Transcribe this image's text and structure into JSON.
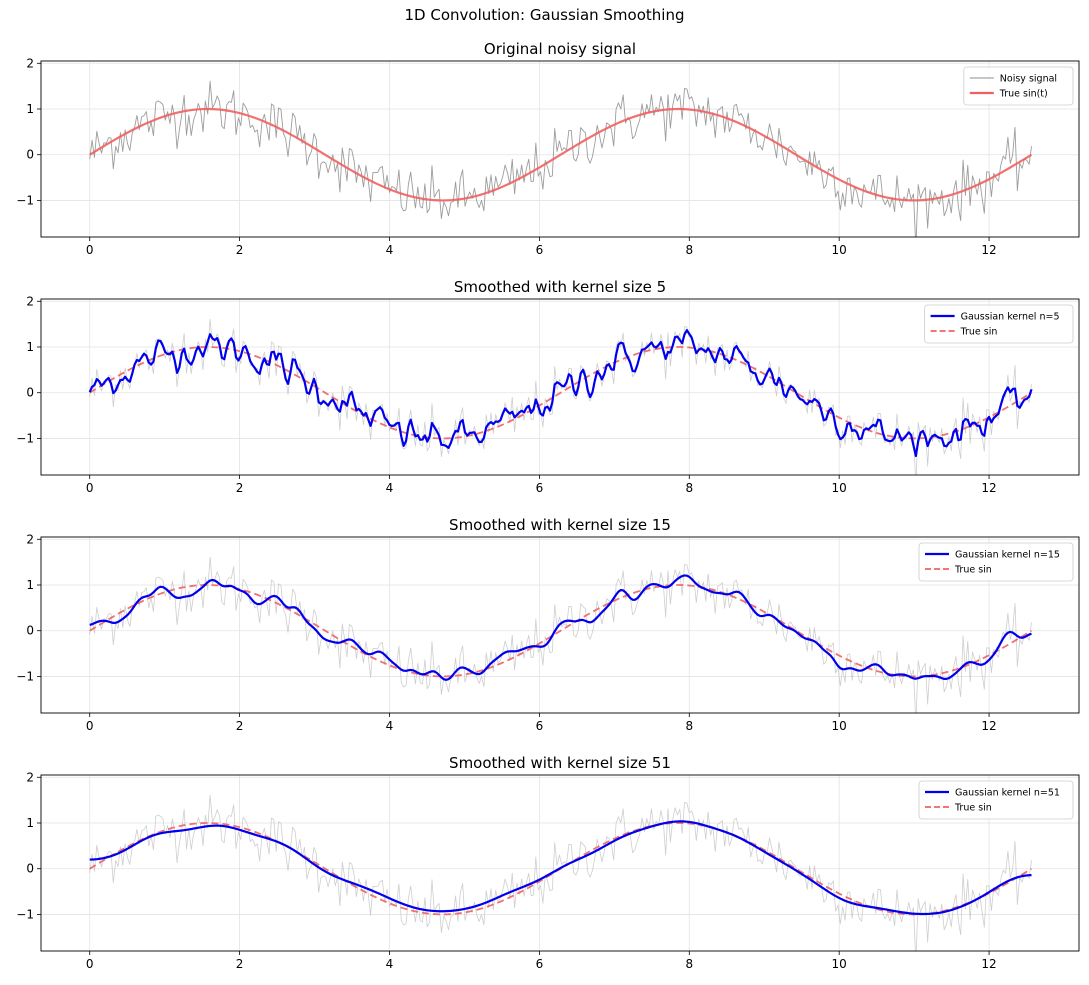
{
  "figure_title": "1D Convolution: Gaussian Smoothing",
  "colors": {
    "noisy": "#8c8c8c",
    "noisy_faint": "#bdbdbd",
    "true_sin": "#f06060",
    "smoothed": "#0000ee",
    "grid": "#e3e3e3",
    "axis": "#000000"
  },
  "chart_data": [
    {
      "type": "line",
      "title": "Original noisy signal",
      "xlabel": "",
      "ylabel": "",
      "xlim": [
        -0.65,
        13.2
      ],
      "ylim": [
        -1.8,
        2.05
      ],
      "xticks": [
        0,
        2,
        4,
        6,
        8,
        10,
        12
      ],
      "yticks": [
        -1,
        0,
        1,
        2
      ],
      "grid": true,
      "legend_position": "top-right",
      "series": [
        {
          "name": "Noisy signal",
          "role": "noisy",
          "source": "sin(t) + gaussian noise, sigma 0.3, 400 samples, t in [0, 12.57]"
        },
        {
          "name": "True sin(t)",
          "role": "true_solid",
          "source": "sin(t), t in [0, 12.57]"
        }
      ]
    },
    {
      "type": "line",
      "title": "Smoothed with kernel size 5",
      "xlabel": "",
      "ylabel": "",
      "xlim": [
        -0.65,
        13.2
      ],
      "ylim": [
        -1.8,
        2.05
      ],
      "xticks": [
        0,
        2,
        4,
        6,
        8,
        10,
        12
      ],
      "yticks": [
        -1,
        0,
        1,
        2
      ],
      "grid": true,
      "legend_position": "top-right",
      "kernel_size": 5,
      "series": [
        {
          "name": "Gaussian kernel n=5",
          "role": "smoothed"
        },
        {
          "name": "True sin",
          "role": "true_dashed"
        }
      ]
    },
    {
      "type": "line",
      "title": "Smoothed with kernel size 15",
      "xlabel": "",
      "ylabel": "",
      "xlim": [
        -0.65,
        13.2
      ],
      "ylim": [
        -1.8,
        2.05
      ],
      "xticks": [
        0,
        2,
        4,
        6,
        8,
        10,
        12
      ],
      "yticks": [
        -1,
        0,
        1,
        2
      ],
      "grid": true,
      "legend_position": "top-right",
      "kernel_size": 15,
      "series": [
        {
          "name": "Gaussian kernel n=15",
          "role": "smoothed"
        },
        {
          "name": "True sin",
          "role": "true_dashed"
        }
      ]
    },
    {
      "type": "line",
      "title": "Smoothed with kernel size 51",
      "xlabel": "",
      "ylabel": "",
      "xlim": [
        -0.65,
        13.2
      ],
      "ylim": [
        -1.8,
        2.05
      ],
      "xticks": [
        0,
        2,
        4,
        6,
        8,
        10,
        12
      ],
      "yticks": [
        -1,
        0,
        1,
        2
      ],
      "grid": true,
      "legend_position": "top-right",
      "kernel_size": 51,
      "series": [
        {
          "name": "Gaussian kernel n=51",
          "role": "smoothed"
        },
        {
          "name": "True sin",
          "role": "true_dashed"
        }
      ]
    }
  ]
}
